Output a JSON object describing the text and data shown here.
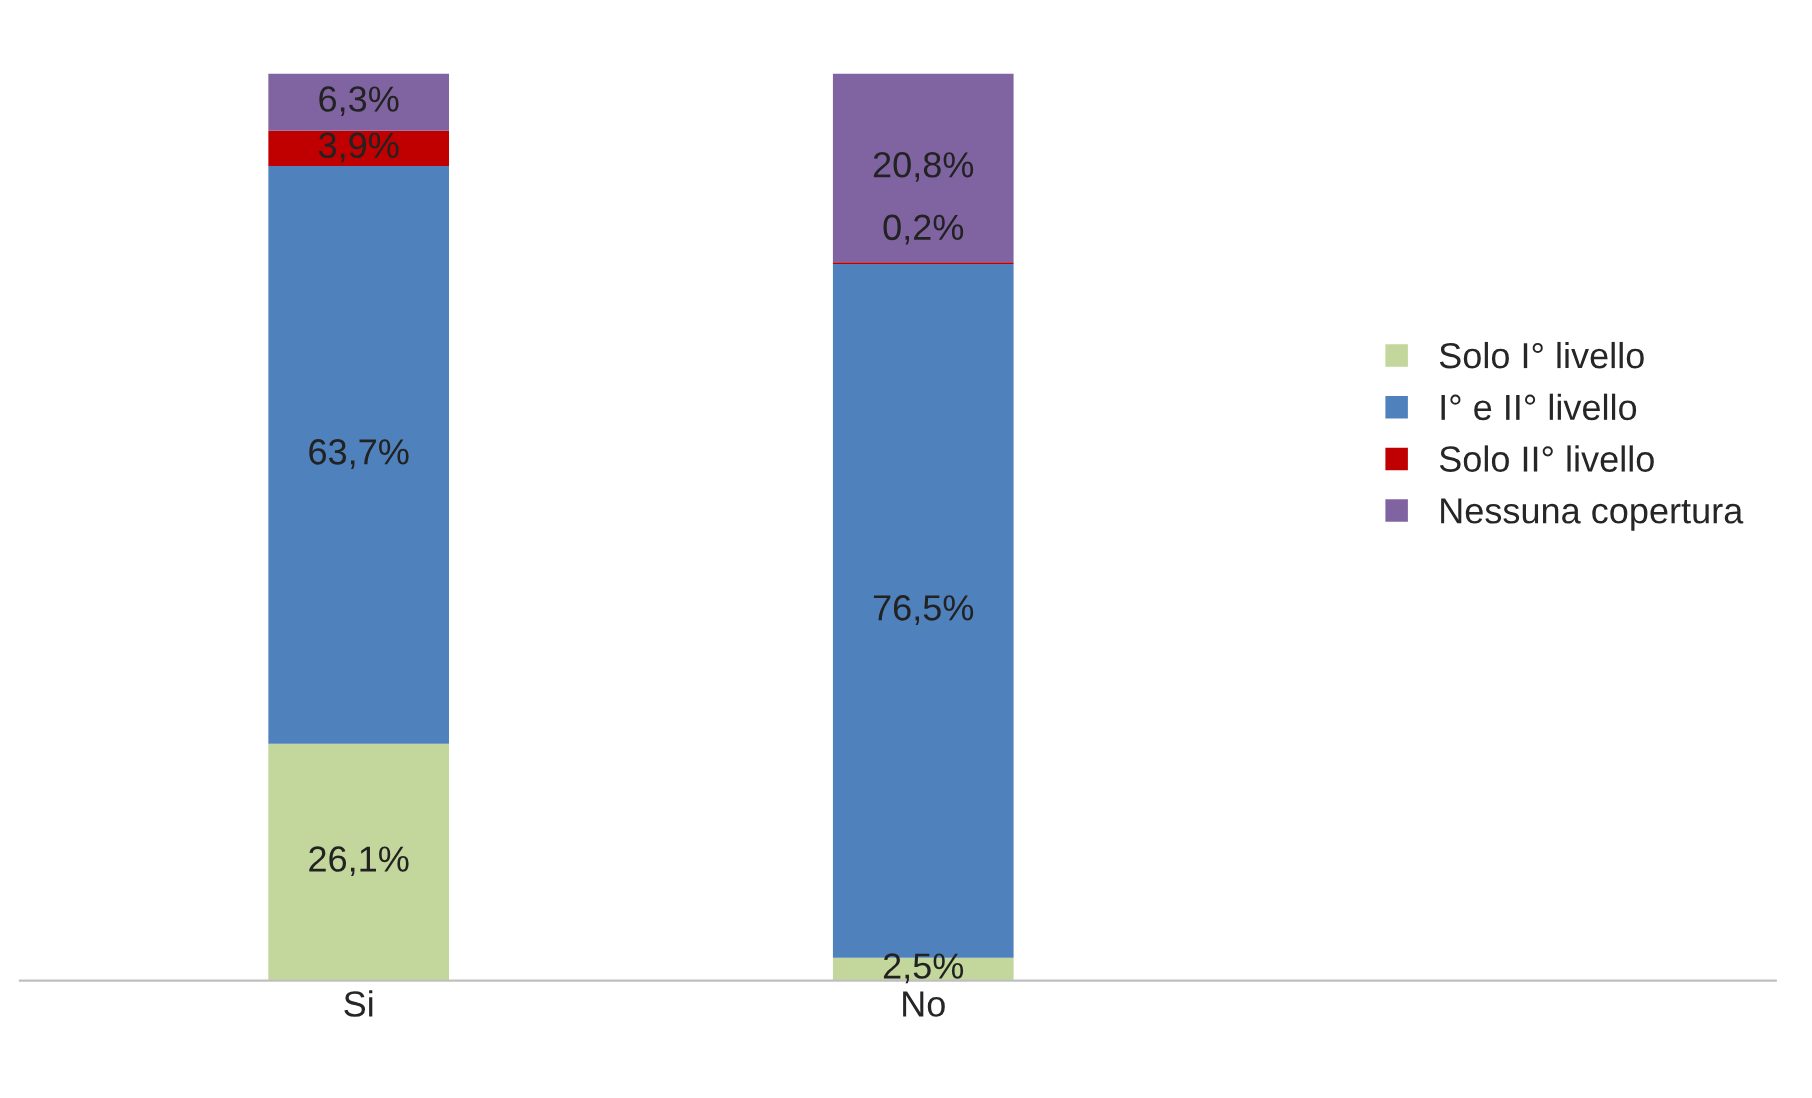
{
  "chart_data": {
    "type": "bar",
    "stacked": true,
    "categories": [
      "Si",
      "No"
    ],
    "series": [
      {
        "name": "Solo I° livello",
        "color": "#c3d69b",
        "values": [
          26.1,
          2.5
        ],
        "value_labels": [
          "26,1%",
          "2,5%"
        ]
      },
      {
        "name": "I° e II° livello",
        "color": "#4f81bd",
        "values": [
          63.7,
          76.5
        ],
        "value_labels": [
          "63,7%",
          "76,5%"
        ]
      },
      {
        "name": "Solo II° livello",
        "color": "#c00000",
        "values": [
          3.9,
          0.2
        ],
        "value_labels": [
          "3,9%",
          "0,2%"
        ]
      },
      {
        "name": "Nessuna copertura",
        "color": "#8064a2",
        "values": [
          6.3,
          20.8
        ],
        "value_labels": [
          "6,3%",
          "20,8%"
        ]
      }
    ],
    "ylim": [
      0,
      100
    ],
    "tick_labels": "x",
    "legend": "right",
    "grid": false
  }
}
